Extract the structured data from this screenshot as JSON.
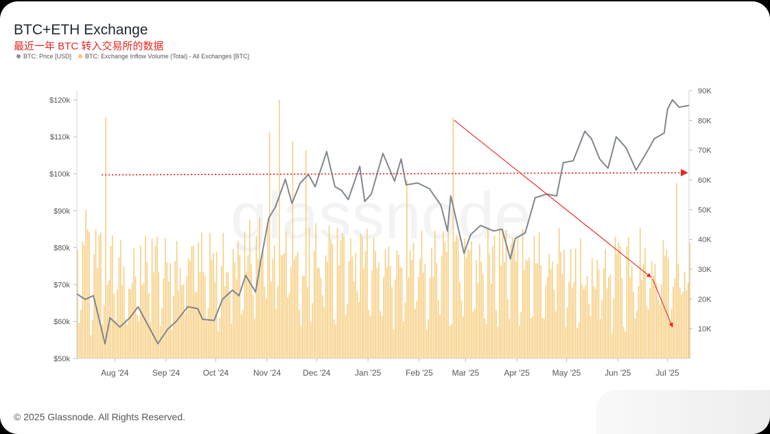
{
  "header": {
    "title": "BTC+ETH Exchange",
    "subtitle": "最近一年 BTC 转入交易所的数据"
  },
  "legend": [
    {
      "label": "BTC: Price [USD]",
      "color": "#8a8f96"
    },
    {
      "label": "BTC: Exchange Inflow Volume (Total) - All Exchanges [BTC]",
      "color": "#f6c66a"
    }
  ],
  "watermark": "glassnode",
  "footer": "© 2025 Glassnode. All Rights Reserved.",
  "colors": {
    "price_line": "#7e858d",
    "bars": "#f6c66a",
    "annotation": "#e8251f"
  },
  "chart_data": {
    "type": "line+bar",
    "x_range": [
      "2024-07-19",
      "2025-07-24"
    ],
    "x_ticks": [
      "Aug '24",
      "Sep '24",
      "Oct '24",
      "Nov '24",
      "Dec '24",
      "Jan '25",
      "Feb '25",
      "Mar '25",
      "Apr '25",
      "May '25",
      "Jun '25",
      "Jul '25"
    ],
    "y_left": {
      "label": "",
      "ticks": [
        "$50k",
        "$60k",
        "$70k",
        "$80k",
        "$90k",
        "$100k",
        "$110k",
        "$120k"
      ],
      "range": [
        50000,
        122500
      ]
    },
    "y_right": {
      "label": "",
      "ticks": [
        "10K",
        "20K",
        "30K",
        "40K",
        "50K",
        "60K",
        "70K",
        "80K",
        "90K"
      ],
      "range": [
        0,
        90000
      ]
    },
    "series": [
      {
        "name": "BTC: Price [USD]",
        "axis": "left",
        "type": "line",
        "points": [
          [
            "2024-07-19",
            67500
          ],
          [
            "2024-07-24",
            66000
          ],
          [
            "2024-07-29",
            67000
          ],
          [
            "2024-08-05",
            54000
          ],
          [
            "2024-08-08",
            61000
          ],
          [
            "2024-08-14",
            58500
          ],
          [
            "2024-08-20",
            61000
          ],
          [
            "2024-08-25",
            64000
          ],
          [
            "2024-08-31",
            59000
          ],
          [
            "2024-09-06",
            54000
          ],
          [
            "2024-09-12",
            58000
          ],
          [
            "2024-09-17",
            60000
          ],
          [
            "2024-09-24",
            64000
          ],
          [
            "2024-09-30",
            63500
          ],
          [
            "2024-10-03",
            60600
          ],
          [
            "2024-10-10",
            60300
          ],
          [
            "2024-10-15",
            66000
          ],
          [
            "2024-10-21",
            68500
          ],
          [
            "2024-10-25",
            67000
          ],
          [
            "2024-10-29",
            72500
          ],
          [
            "2024-11-04",
            68000
          ],
          [
            "2024-11-07",
            76000
          ],
          [
            "2024-11-12",
            88000
          ],
          [
            "2024-11-16",
            91000
          ],
          [
            "2024-11-22",
            98500
          ],
          [
            "2024-11-26",
            92000
          ],
          [
            "2024-12-01",
            97500
          ],
          [
            "2024-12-06",
            99800
          ],
          [
            "2024-12-10",
            96500
          ],
          [
            "2024-12-17",
            106000
          ],
          [
            "2024-12-22",
            96500
          ],
          [
            "2024-12-26",
            95500
          ],
          [
            "2024-12-30",
            93000
          ],
          [
            "2025-01-06",
            102000
          ],
          [
            "2025-01-09",
            92500
          ],
          [
            "2025-01-13",
            94500
          ],
          [
            "2025-01-20",
            105500
          ],
          [
            "2025-01-27",
            98000
          ],
          [
            "2025-01-31",
            104000
          ],
          [
            "2025-02-03",
            97000
          ],
          [
            "2025-02-10",
            97500
          ],
          [
            "2025-02-17",
            96000
          ],
          [
            "2025-02-24",
            91500
          ],
          [
            "2025-02-28",
            84500
          ],
          [
            "2025-03-02",
            94000
          ],
          [
            "2025-03-10",
            78500
          ],
          [
            "2025-03-14",
            83500
          ],
          [
            "2025-03-20",
            86000
          ],
          [
            "2025-03-28",
            84500
          ],
          [
            "2025-04-02",
            85000
          ],
          [
            "2025-04-07",
            77000
          ],
          [
            "2025-04-10",
            82500
          ],
          [
            "2025-04-16",
            84000
          ],
          [
            "2025-04-22",
            93500
          ],
          [
            "2025-04-29",
            94500
          ],
          [
            "2025-05-05",
            94000
          ],
          [
            "2025-05-09",
            103000
          ],
          [
            "2025-05-15",
            103500
          ],
          [
            "2025-05-22",
            111500
          ],
          [
            "2025-05-26",
            109500
          ],
          [
            "2025-05-31",
            104000
          ],
          [
            "2025-06-05",
            101500
          ],
          [
            "2025-06-10",
            110000
          ],
          [
            "2025-06-16",
            107000
          ],
          [
            "2025-06-22",
            101000
          ],
          [
            "2025-06-30",
            107000
          ],
          [
            "2025-07-03",
            109500
          ],
          [
            "2025-07-09",
            111000
          ],
          [
            "2025-07-11",
            117500
          ],
          [
            "2025-07-14",
            120000
          ],
          [
            "2025-07-18",
            118000
          ],
          [
            "2025-07-24",
            118500
          ]
        ]
      },
      {
        "name": "BTC: Exchange Inflow Volume (Total) - All Exchanges [BTC]",
        "axis": "right",
        "type": "bar",
        "note": "daily bars, typically 20K–45K BTC",
        "peaks": [
          [
            "2024-07-24",
            50000
          ],
          [
            "2024-08-05",
            81000
          ],
          [
            "2024-11-12",
            76000
          ],
          [
            "2024-11-18",
            87000
          ],
          [
            "2024-11-26",
            73000
          ],
          [
            "2024-12-04",
            70000
          ],
          [
            "2025-02-03",
            60000
          ],
          [
            "2025-03-03",
            81000
          ],
          [
            "2025-07-16",
            59000
          ]
        ]
      }
    ],
    "annotations": [
      {
        "type": "dashed-arrow",
        "from": [
          "2024-08-03",
          99700
        ],
        "to": [
          "2025-07-23",
          100300
        ]
      },
      {
        "type": "arrow",
        "from": [
          "2025-03-04",
          114500
        ],
        "to": [
          "2025-07-01",
          72000
        ]
      },
      {
        "type": "arrow",
        "from": [
          "2025-07-02",
          71500
        ],
        "to": [
          "2025-07-14",
          58500
        ]
      }
    ]
  }
}
